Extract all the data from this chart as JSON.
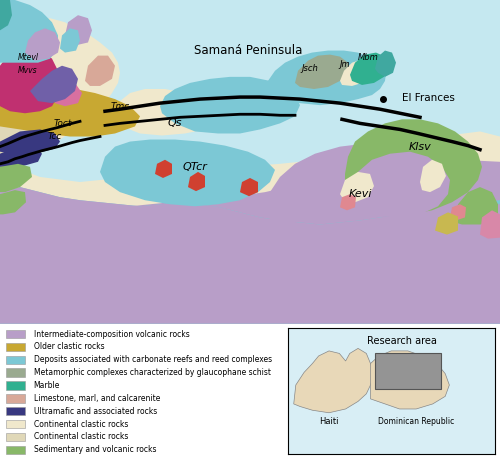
{
  "map_bg": "#c5e8f0",
  "legend_items": [
    {
      "label": "Intermediate-composition volcanic rocks",
      "color": "#b89ec8"
    },
    {
      "label": "Older clastic rocks",
      "color": "#c8a832"
    },
    {
      "label": "Deposits associated with carbonate reefs and reed complexes",
      "color": "#7cc8d5"
    },
    {
      "label": "Metamorphic complexes characterized by glaucophane schist",
      "color": "#9aaa90"
    },
    {
      "label": "Marble",
      "color": "#30b090"
    },
    {
      "label": "Limestone, marl, and calcarenite",
      "color": "#d8a898"
    },
    {
      "label": "Ultramafic and associated rocks",
      "color": "#383880"
    },
    {
      "label": "Continental clastic rocks",
      "color": "#f0e8cc"
    },
    {
      "label": "Continental clastic rocks",
      "color": "#e0d8b8"
    },
    {
      "label": "Sedimentary and volcanic rocks",
      "color": "#88b868"
    }
  ]
}
